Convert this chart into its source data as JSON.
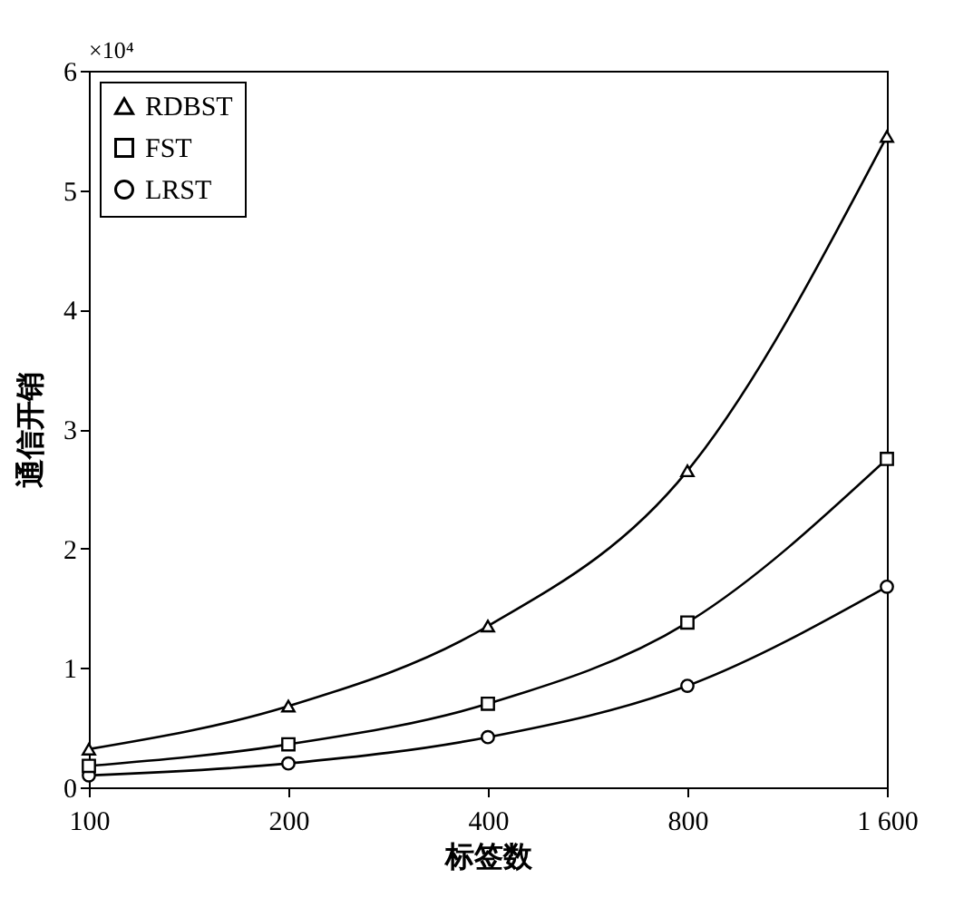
{
  "chart_data": {
    "type": "line",
    "xlabel": "标签数",
    "ylabel": "通信开销",
    "annotations": [
      "×10⁴"
    ],
    "categories": [
      "100",
      "200",
      "400",
      "800",
      "1 600"
    ],
    "ylim": [
      0,
      6
    ],
    "yticks": [
      0,
      1,
      2,
      3,
      4,
      5,
      6
    ],
    "legend": "top left",
    "grid": false,
    "line_style": "solid",
    "series": [
      {
        "name": "RDBST",
        "color": "#000000",
        "marker": "triangle",
        "values": [
          0.32,
          0.68,
          1.35,
          2.65,
          5.45
        ]
      },
      {
        "name": "FST",
        "color": "#000000",
        "marker": "square",
        "values": [
          0.18,
          0.36,
          0.7,
          1.38,
          2.75
        ]
      },
      {
        "name": "LRST",
        "color": "#000000",
        "marker": "circle",
        "values": [
          0.1,
          0.2,
          0.42,
          0.85,
          1.68
        ]
      }
    ]
  }
}
